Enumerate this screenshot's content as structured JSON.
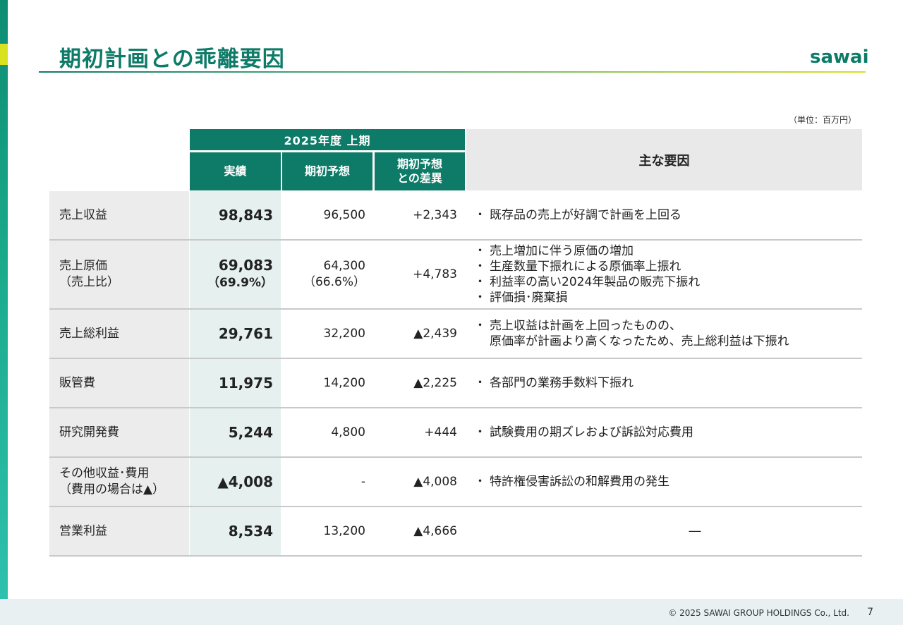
{
  "title": "期初計画との乖離要因",
  "logo_text": "sawai",
  "unit_note": "（単位：百万円）",
  "table": {
    "period_header": "2025年度 上期",
    "col_actual": "実績",
    "col_plan": "期初予想",
    "col_diff": "期初予想\nとの差異",
    "col_factors": "主な要因",
    "rows": [
      {
        "label": "売上収益",
        "label2": "",
        "actual": "98,843",
        "actual2": "",
        "plan": "96,500",
        "plan2": "",
        "diff": "+2,343",
        "factors": [
          "既存品の売上が好調で計画を上回る"
        ]
      },
      {
        "label": "売上原価",
        "label2": "（売上比）",
        "actual": "69,083",
        "actual2": "（69.9%）",
        "plan": "64,300",
        "plan2": "（66.6%）",
        "diff": "+4,783",
        "factors": [
          "売上増加に伴う原価の増加",
          "生産数量下振れによる原価率上振れ",
          "利益率の高い2024年製品の販売下振れ",
          "評価損･廃棄損"
        ]
      },
      {
        "label": "売上総利益",
        "label2": "",
        "actual": "29,761",
        "actual2": "",
        "plan": "32,200",
        "plan2": "",
        "diff": "▲2,439",
        "factors": [
          "売上収益は計画を上回ったものの、"
        ],
        "factor_cont": "原価率が計画より高くなったため、売上総利益は下振れ"
      },
      {
        "label": "販管費",
        "label2": "",
        "actual": "11,975",
        "actual2": "",
        "plan": "14,200",
        "plan2": "",
        "diff": "▲2,225",
        "factors": [
          "各部門の業務手数料下振れ"
        ]
      },
      {
        "label": "研究開発費",
        "label2": "",
        "actual": "5,244",
        "actual2": "",
        "plan": "4,800",
        "plan2": "",
        "diff": "+444",
        "factors": [
          "試験費用の期ズレおよび訴訟対応費用"
        ]
      },
      {
        "label": "その他収益･費用",
        "label2": "（費用の場合は▲）",
        "actual": "▲4,008",
        "actual2": "",
        "plan": "-",
        "plan2": "",
        "diff": "▲4,008",
        "factors": [
          "特許権侵害訴訟の和解費用の発生"
        ]
      },
      {
        "label": "営業利益",
        "label2": "",
        "actual": "8,534",
        "actual2": "",
        "plan": "13,200",
        "plan2": "",
        "diff": "▲4,666",
        "factors_dash": "―"
      }
    ]
  },
  "footer": {
    "copyright": "© 2025 SAWAI GROUP HOLDINGS Co., Ltd.",
    "page_number": "7"
  }
}
